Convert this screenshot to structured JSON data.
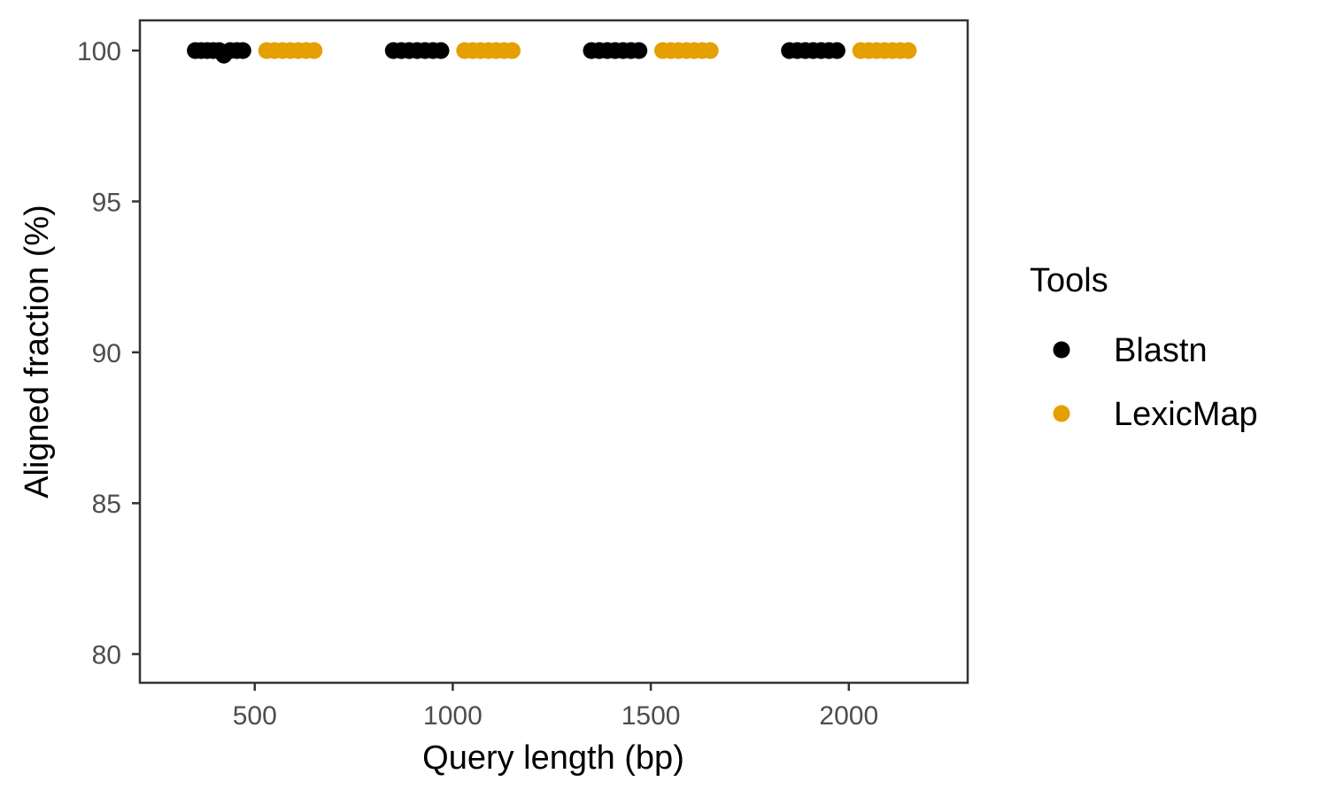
{
  "chart_data": {
    "type": "scatter",
    "xlabel": "Query length (bp)",
    "ylabel": "Aligned fraction (%)",
    "xlim": [
      210,
      2300
    ],
    "ylim": [
      79.05,
      101
    ],
    "x_ticks": [
      500,
      1000,
      1500,
      2000
    ],
    "x_tick_labels": [
      "500",
      "1000",
      "1500",
      "2000"
    ],
    "y_ticks": [
      80,
      85,
      90,
      95,
      100
    ],
    "y_tick_labels": [
      "80",
      "85",
      "90",
      "95",
      "100"
    ],
    "grid": false,
    "legend": {
      "title": "Tools",
      "position": "right"
    },
    "series": [
      {
        "name": "Blastn",
        "color": "#000000",
        "points": [
          {
            "x": 350,
            "y": 100
          },
          {
            "x": 365,
            "y": 100
          },
          {
            "x": 380,
            "y": 100
          },
          {
            "x": 395,
            "y": 100
          },
          {
            "x": 410,
            "y": 100
          },
          {
            "x": 422,
            "y": 99.85
          },
          {
            "x": 438,
            "y": 100
          },
          {
            "x": 455,
            "y": 100
          },
          {
            "x": 470,
            "y": 100
          },
          {
            "x": 850,
            "y": 100
          },
          {
            "x": 870,
            "y": 100
          },
          {
            "x": 890,
            "y": 100
          },
          {
            "x": 910,
            "y": 100
          },
          {
            "x": 930,
            "y": 100
          },
          {
            "x": 950,
            "y": 100
          },
          {
            "x": 970,
            "y": 100
          },
          {
            "x": 1350,
            "y": 100
          },
          {
            "x": 1370,
            "y": 100
          },
          {
            "x": 1390,
            "y": 100
          },
          {
            "x": 1410,
            "y": 100
          },
          {
            "x": 1430,
            "y": 100
          },
          {
            "x": 1450,
            "y": 100
          },
          {
            "x": 1470,
            "y": 100
          },
          {
            "x": 1850,
            "y": 100
          },
          {
            "x": 1870,
            "y": 100
          },
          {
            "x": 1890,
            "y": 100
          },
          {
            "x": 1910,
            "y": 100
          },
          {
            "x": 1930,
            "y": 100
          },
          {
            "x": 1950,
            "y": 100
          },
          {
            "x": 1970,
            "y": 100
          }
        ]
      },
      {
        "name": "LexicMap",
        "color": "#E69F00",
        "points": [
          {
            "x": 530,
            "y": 100
          },
          {
            "x": 550,
            "y": 100
          },
          {
            "x": 570,
            "y": 100
          },
          {
            "x": 590,
            "y": 100
          },
          {
            "x": 610,
            "y": 100
          },
          {
            "x": 630,
            "y": 100
          },
          {
            "x": 650,
            "y": 100
          },
          {
            "x": 1030,
            "y": 100
          },
          {
            "x": 1050,
            "y": 100
          },
          {
            "x": 1070,
            "y": 100
          },
          {
            "x": 1090,
            "y": 100
          },
          {
            "x": 1110,
            "y": 100
          },
          {
            "x": 1130,
            "y": 100
          },
          {
            "x": 1150,
            "y": 100
          },
          {
            "x": 1530,
            "y": 100
          },
          {
            "x": 1550,
            "y": 100
          },
          {
            "x": 1570,
            "y": 100
          },
          {
            "x": 1590,
            "y": 100
          },
          {
            "x": 1610,
            "y": 100
          },
          {
            "x": 1630,
            "y": 100
          },
          {
            "x": 1650,
            "y": 100
          },
          {
            "x": 2030,
            "y": 100
          },
          {
            "x": 2050,
            "y": 100
          },
          {
            "x": 2070,
            "y": 100
          },
          {
            "x": 2090,
            "y": 100
          },
          {
            "x": 2110,
            "y": 100
          },
          {
            "x": 2130,
            "y": 100
          },
          {
            "x": 2150,
            "y": 100
          }
        ]
      }
    ]
  }
}
